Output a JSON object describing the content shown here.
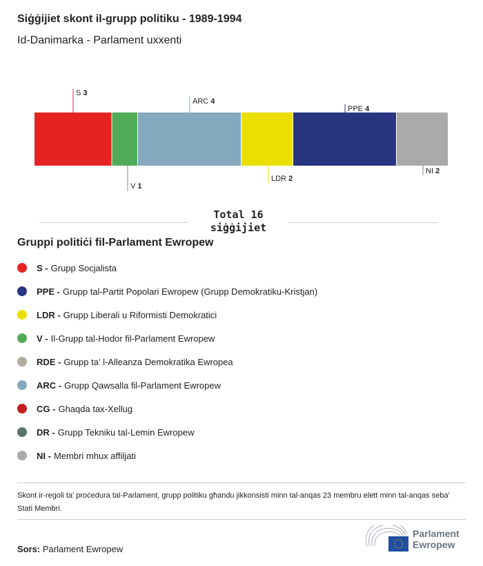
{
  "title": "Siġġijiet skont il-grupp politiku - 1989-1994",
  "subtitle": "Id-Danimarka - Parlament uxxenti",
  "chart_data": {
    "type": "bar",
    "orientation": "stacked-horizontal",
    "categories": [
      "S",
      "V",
      "ARC",
      "LDR",
      "PPE",
      "NI"
    ],
    "values": [
      3,
      1,
      4,
      2,
      4,
      2
    ],
    "colors": [
      "#e52421",
      "#52ab57",
      "#84a9be",
      "#ebdf00",
      "#283580",
      "#aaaaa8"
    ],
    "total_label": "Total 16 siġġijiet"
  },
  "legend": {
    "title": "Gruppi politiċi fil-Parlament Ewropew",
    "items": [
      {
        "abbr": "S -",
        "name": "Grupp Socjalista",
        "color": "#e52421"
      },
      {
        "abbr": "PPE -",
        "name": "Grupp tal-Partit Popolari Ewropew (Grupp Demokratiku-Kristjan)",
        "color": "#283580"
      },
      {
        "abbr": "LDR -",
        "name": "Grupp Liberali u Riformisti Demokratici",
        "color": "#ebdf00"
      },
      {
        "abbr": "V -",
        "name": "Il-Grupp tal-Hodor fil-Parlament Ewropew",
        "color": "#52ab57"
      },
      {
        "abbr": "RDE -",
        "name": "Grupp ta' l-Alleanza Demokratika Ewropea",
        "color": "#b3ab9e"
      },
      {
        "abbr": "ARC -",
        "name": "Grupp Qawsalla fil-Parlament Ewropew",
        "color": "#84a9be"
      },
      {
        "abbr": "CG -",
        "name": "Ghaqda tax-Xellug",
        "color": "#c41f1f"
      },
      {
        "abbr": "DR -",
        "name": "Grupp Tekniku tal-Lemin Ewropew",
        "color": "#5b7568"
      },
      {
        "abbr": "NI -",
        "name": "Membri mhux affiljati",
        "color": "#aaaaaa"
      }
    ]
  },
  "note": "Skont ir-regoli ta' proċedura tal-Parlament, grupp politiku għandu jikkonsisti minn tal-anqas 23 membru elett minn tal-anqas seba' Stati Membri.",
  "source": {
    "label": "Sors:",
    "value": "Parlament Ewropew"
  },
  "logo": {
    "line1": "Parlament",
    "line2": "Ewropew"
  }
}
